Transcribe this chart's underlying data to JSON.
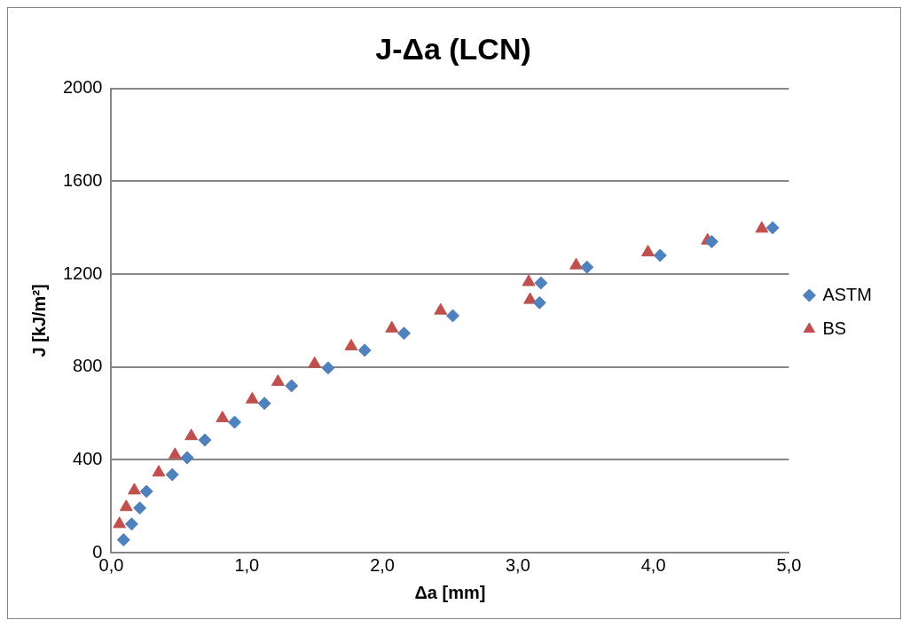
{
  "chart_data": {
    "type": "scatter",
    "title": "J-Δa (LCN)",
    "xlabel": "Δa [mm]",
    "ylabel": "J [kJ/m²]",
    "xlim": [
      0,
      5
    ],
    "xticks": [
      {
        "value": 0,
        "label": "0,0"
      },
      {
        "value": 1,
        "label": "1,0"
      },
      {
        "value": 2,
        "label": "2,0"
      },
      {
        "value": 3,
        "label": "3,0"
      },
      {
        "value": 4,
        "label": "4,0"
      },
      {
        "value": 5,
        "label": "5,0"
      }
    ],
    "ylim": [
      0,
      2000
    ],
    "yticks": [
      0,
      400,
      800,
      1200,
      1600,
      2000
    ],
    "grid": "y",
    "legend": "right",
    "series": [
      {
        "name": "ASTM",
        "color": "#4f81bd",
        "marker": "diamond",
        "x": [
          0.09,
          0.15,
          0.21,
          0.26,
          0.45,
          0.56,
          0.69,
          0.91,
          1.13,
          1.33,
          1.6,
          1.87,
          2.16,
          2.52,
          3.16,
          3.17,
          3.51,
          4.05,
          4.43,
          4.88
        ],
        "values": [
          55,
          123,
          192,
          264,
          336,
          409,
          485,
          562,
          643,
          719,
          796,
          872,
          945,
          1021,
          1077,
          1162,
          1230,
          1281,
          1340,
          1400
        ]
      },
      {
        "name": "BS",
        "color": "#c0504d",
        "marker": "triangle",
        "x": [
          0.06,
          0.11,
          0.17,
          0.35,
          0.47,
          0.59,
          0.82,
          1.04,
          1.23,
          1.5,
          1.77,
          2.07,
          2.43,
          3.09,
          3.08,
          3.43,
          3.96,
          4.4,
          4.8
        ],
        "values": [
          123,
          196,
          268,
          345,
          421,
          502,
          579,
          660,
          736,
          813,
          889,
          966,
          1043,
          1089,
          1166,
          1238,
          1294,
          1345,
          1396
        ]
      }
    ]
  }
}
